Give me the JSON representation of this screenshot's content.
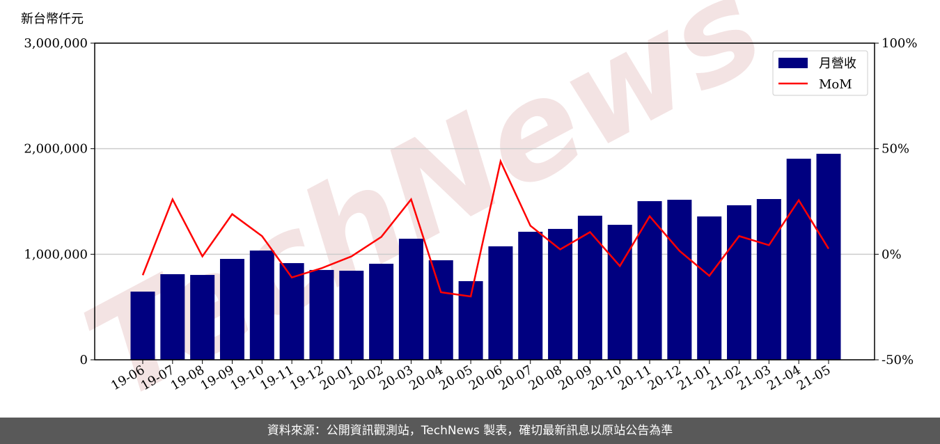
{
  "chart_data": {
    "type": "bar",
    "y_label": "新台幣仟元",
    "watermark": "TechNews",
    "footer": "資料來源：公開資訊觀測站，TechNews 製表，確切最新訊息以原站公告為準",
    "categories": [
      "19-06",
      "19-07",
      "19-08",
      "19-09",
      "19-10",
      "19-11",
      "19-12",
      "20-01",
      "20-02",
      "20-03",
      "20-04",
      "20-05",
      "20-06",
      "20-07",
      "20-08",
      "20-09",
      "20-10",
      "20-11",
      "20-12",
      "21-01",
      "21-02",
      "21-03",
      "21-04",
      "21-05"
    ],
    "series": [
      {
        "name": "月營收",
        "type": "bar",
        "color": "#000080",
        "values": [
          646000,
          811000,
          804000,
          956000,
          1035000,
          916000,
          851000,
          844000,
          910000,
          1147000,
          943000,
          745000,
          1075000,
          1213000,
          1240000,
          1365000,
          1279000,
          1503000,
          1516000,
          1358000,
          1464000,
          1523000,
          1905000,
          1952000
        ]
      },
      {
        "name": "MoM",
        "type": "line",
        "axis": "y2",
        "color": "#ff0000",
        "values": [
          -9.9,
          26,
          -1,
          19,
          8.6,
          -11,
          -6.6,
          -1,
          8.2,
          26,
          -18,
          -20,
          44,
          13.5,
          2.3,
          10.5,
          -5.6,
          18,
          1.6,
          -10.2,
          8.6,
          4.3,
          25.6,
          2.6
        ]
      }
    ],
    "ylim": [
      0,
      3000000
    ],
    "yticks": [
      0,
      {
        "value": 1000000,
        "label": "1,000,000"
      },
      {
        "value": 2000000,
        "label": "2,000,000"
      },
      {
        "value": 3000000,
        "label": "3,000,000"
      }
    ],
    "y2lim": [
      -50,
      100
    ],
    "y2ticks": [
      {
        "value": -50,
        "label": "-50%"
      },
      {
        "value": 0,
        "label": "0%"
      },
      {
        "value": 50,
        "label": "50%"
      },
      {
        "value": 100,
        "label": "100%"
      }
    ],
    "grid": true,
    "legend": "upper right"
  }
}
